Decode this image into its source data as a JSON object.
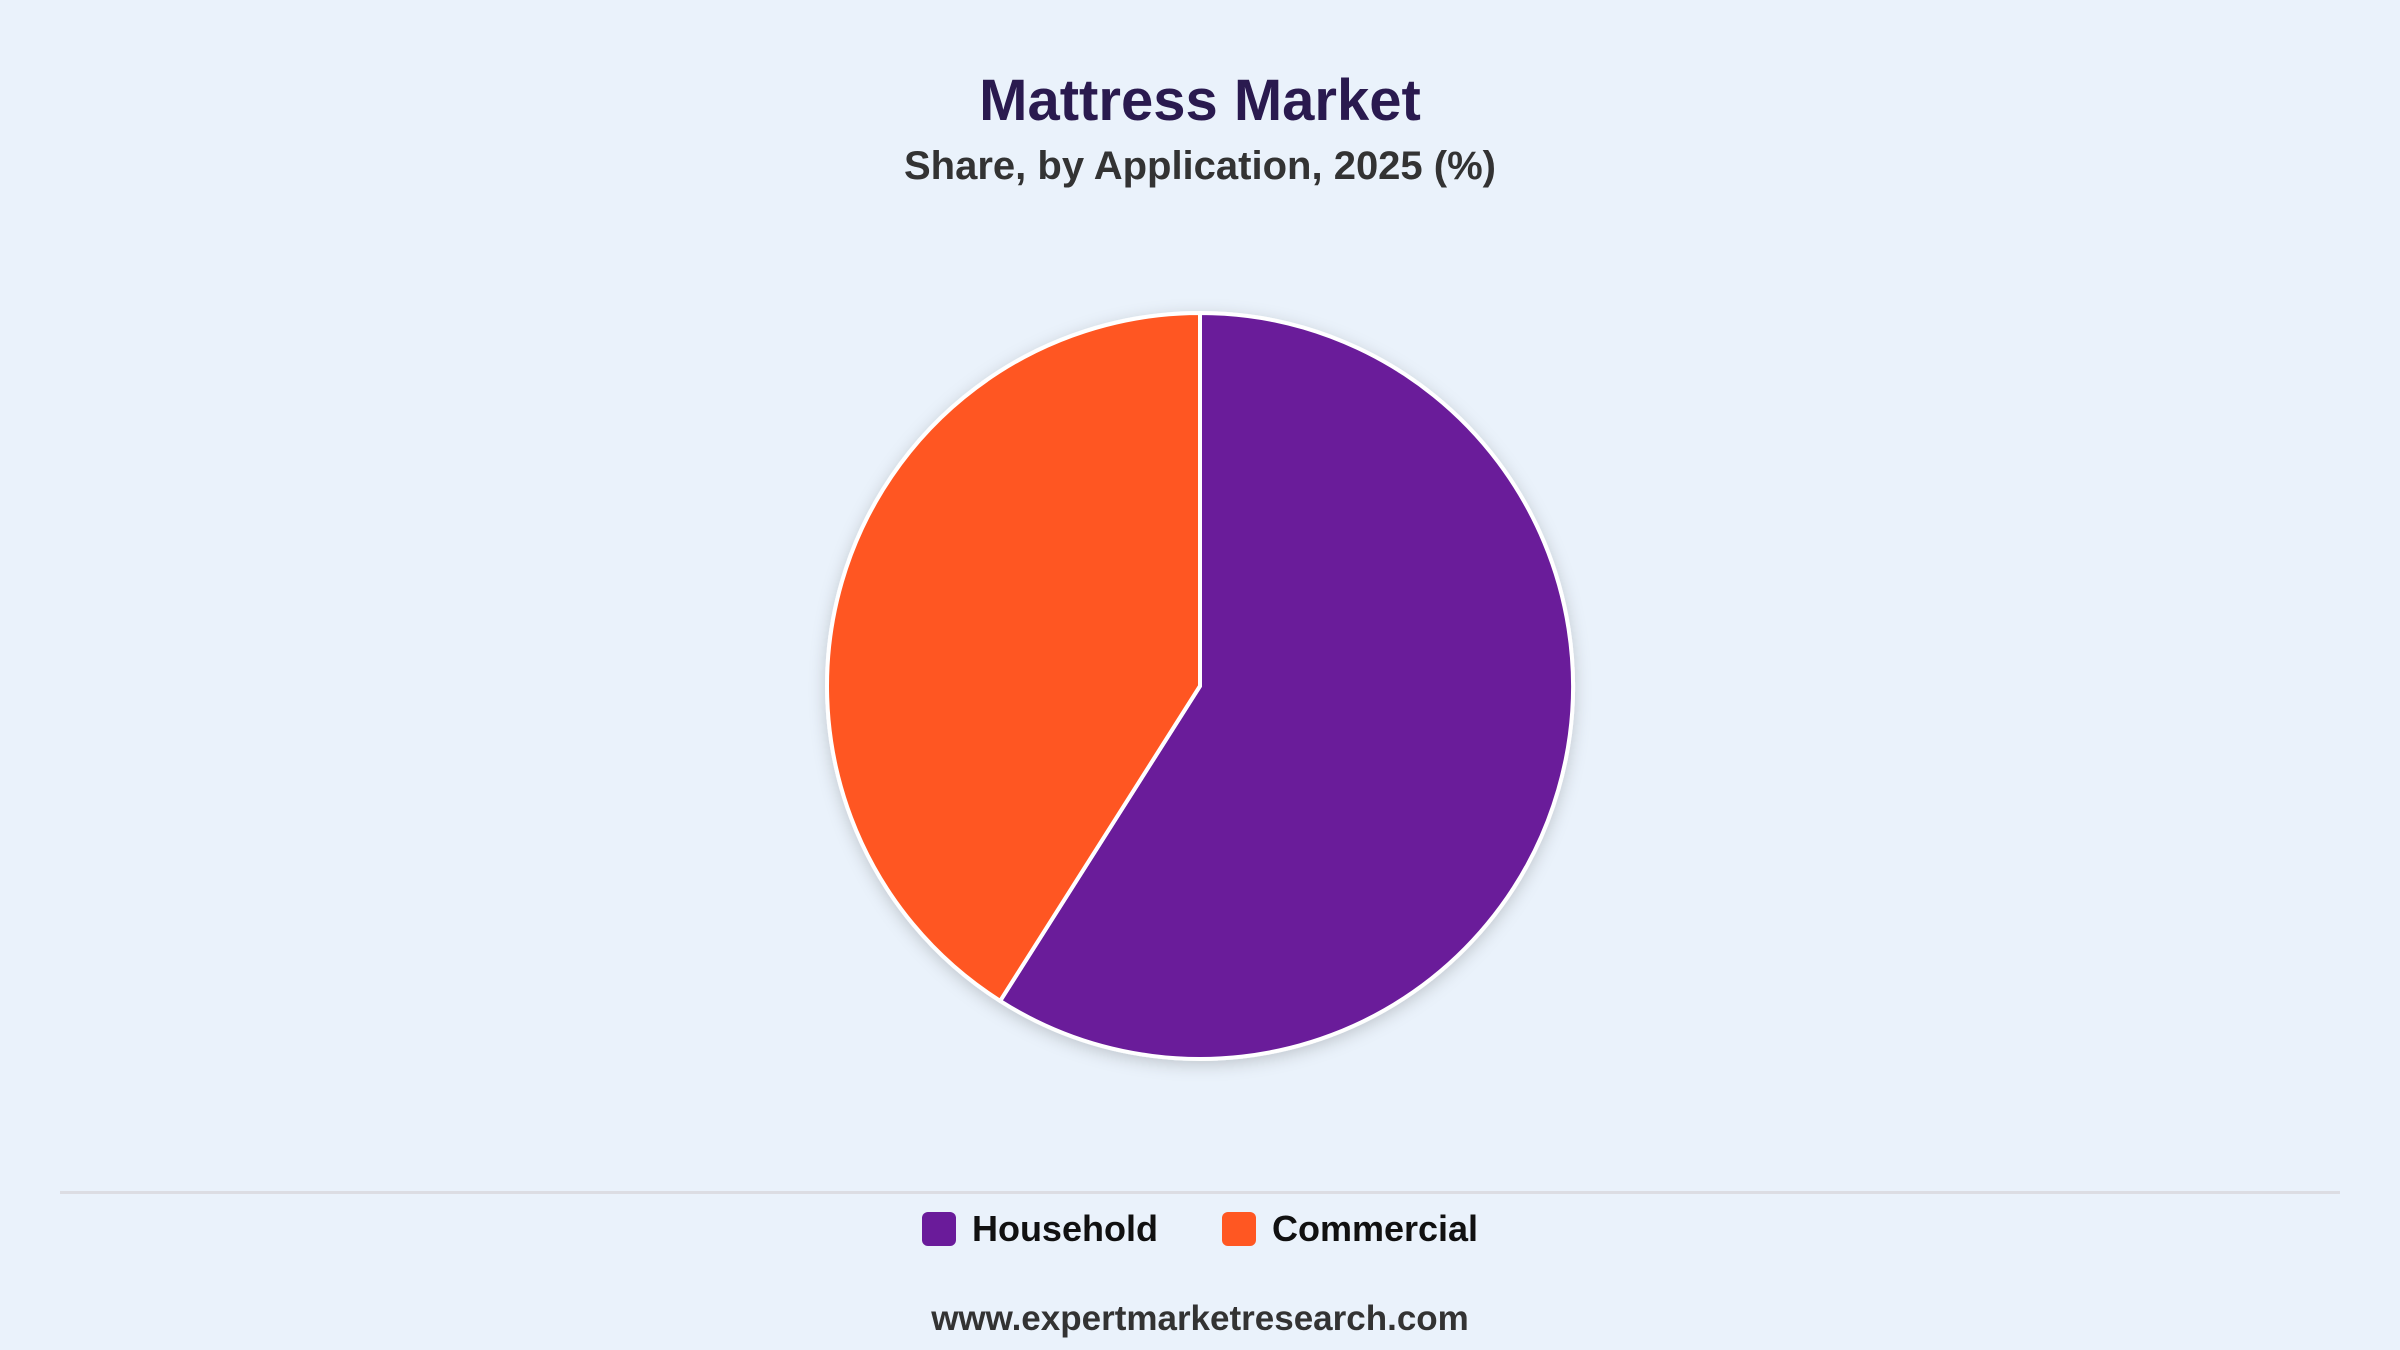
{
  "header": {
    "title": "Mattress Market",
    "subtitle": "Share, by Application, 2025 (%)"
  },
  "chart_data": {
    "type": "pie",
    "title": "Mattress Market",
    "subtitle": "Share, by Application, 2025 (%)",
    "categories": [
      "Household",
      "Commercial"
    ],
    "values": [
      59,
      41
    ],
    "colors": [
      "#6a1b9a",
      "#ff5722"
    ],
    "start": "12 o'clock",
    "direction": "clockwise",
    "legend": "bottom-center"
  },
  "legend": {
    "items": [
      {
        "label": "Household",
        "color": "#6a1b9a"
      },
      {
        "label": "Commercial",
        "color": "#ff5722"
      }
    ]
  },
  "footer": {
    "source": "www.expertmarketresearch.com"
  }
}
